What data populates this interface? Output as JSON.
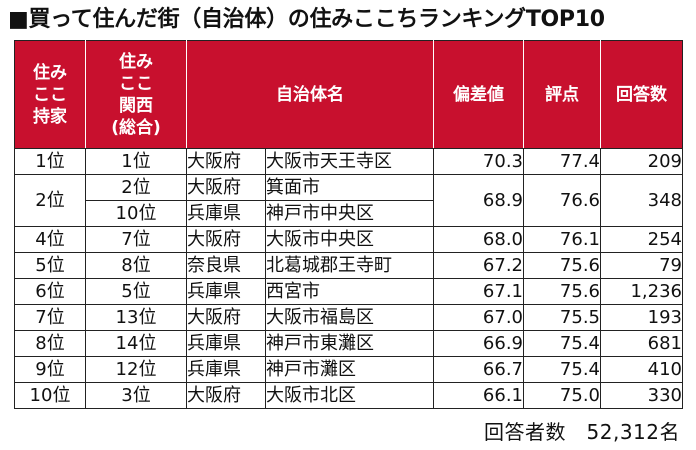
{
  "title": "■買って住んだ街（自治体）の住みここちランキングTOP10",
  "headers": {
    "home_rank": [
      "住み",
      "ここ",
      "持家"
    ],
    "kansai_rank": [
      "住み",
      "ここ",
      "関西",
      "(総合)"
    ],
    "municipality": "自治体名",
    "deviation": "偏差値",
    "score": "評点",
    "respondents": "回答数"
  },
  "rows": [
    {
      "home_rank": "1位",
      "kansai_rank": "1位",
      "pref": "大阪府",
      "city": "大阪市天王寺区",
      "deviation": "70.3",
      "score": "77.4",
      "respondents": "209"
    },
    {
      "home_rank": "2位",
      "kansai_rank": "2位",
      "pref": "大阪府",
      "city": "箕面市",
      "deviation": "68.9",
      "score": "76.6",
      "respondents": "348"
    },
    {
      "kansai_rank": "10位",
      "pref": "兵庫県",
      "city": "神戸市中央区"
    },
    {
      "home_rank": "4位",
      "kansai_rank": "7位",
      "pref": "大阪府",
      "city": "大阪市中央区",
      "deviation": "68.0",
      "score": "76.1",
      "respondents": "254"
    },
    {
      "home_rank": "5位",
      "kansai_rank": "8位",
      "pref": "奈良県",
      "city": "北葛城郡王寺町",
      "deviation": "67.2",
      "score": "75.6",
      "respondents": "79"
    },
    {
      "home_rank": "6位",
      "kansai_rank": "5位",
      "pref": "兵庫県",
      "city": "西宮市",
      "deviation": "67.1",
      "score": "75.6",
      "respondents": "1,236"
    },
    {
      "home_rank": "7位",
      "kansai_rank": "13位",
      "pref": "大阪府",
      "city": "大阪市福島区",
      "deviation": "67.0",
      "score": "75.5",
      "respondents": "193"
    },
    {
      "home_rank": "8位",
      "kansai_rank": "14位",
      "pref": "兵庫県",
      "city": "神戸市東灘区",
      "deviation": "66.9",
      "score": "75.4",
      "respondents": "681"
    },
    {
      "home_rank": "9位",
      "kansai_rank": "12位",
      "pref": "兵庫県",
      "city": "神戸市灘区",
      "deviation": "66.7",
      "score": "75.4",
      "respondents": "410"
    },
    {
      "home_rank": "10位",
      "kansai_rank": "3位",
      "pref": "大阪府",
      "city": "大阪市北区",
      "deviation": "66.1",
      "score": "75.0",
      "respondents": "330"
    }
  ],
  "footer": "回答者数　52,312名",
  "colors": {
    "header_bg": "#c8102e",
    "header_text": "#ffffff"
  }
}
